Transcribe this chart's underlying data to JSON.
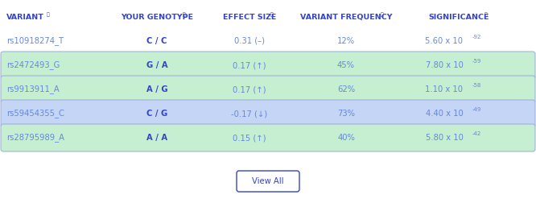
{
  "headers": [
    "VARIANT",
    "YOUR GENOTYPE",
    "EFFECT SIZE",
    "VARIANT FREQUENCY",
    "SIGNIFICANCE"
  ],
  "rows": [
    {
      "variant": "rs10918274_T",
      "genotype": "C / C",
      "effect_size": "0.31 (–)",
      "frequency": "12%",
      "sig_base": "5.60 x 10",
      "sig_exp": "-92",
      "bg": "white"
    },
    {
      "variant": "rs2472493_G",
      "genotype": "G / A",
      "effect_size": "0.17 (↑)",
      "frequency": "45%",
      "sig_base": "7.80 x 10",
      "sig_exp": "-59",
      "bg": "green"
    },
    {
      "variant": "rs9913911_A",
      "genotype": "A / G",
      "effect_size": "0.17 (↑)",
      "frequency": "62%",
      "sig_base": "1.10 x 10",
      "sig_exp": "-58",
      "bg": "green"
    },
    {
      "variant": "rs59454355_C",
      "genotype": "C / G",
      "effect_size": "-0.17 (↓)",
      "frequency": "73%",
      "sig_base": "4.40 x 10",
      "sig_exp": "-49",
      "bg": "blue"
    },
    {
      "variant": "rs28795989_A",
      "genotype": "A / A",
      "effect_size": "0.15 (↑)",
      "frequency": "40%",
      "sig_base": "5.80 x 10",
      "sig_exp": "-42",
      "bg": "green"
    }
  ],
  "header_color": "#3344cc",
  "text_color": "#6688dd",
  "bold_color": "#3344cc",
  "green_bg": "#c5efd0",
  "blue_bg": "#c5d5f5",
  "white_bg": "#ffffff",
  "border_color": "#99aadd",
  "button_text": "View All",
  "figsize": [
    6.66,
    2.47
  ],
  "dpi": 100
}
